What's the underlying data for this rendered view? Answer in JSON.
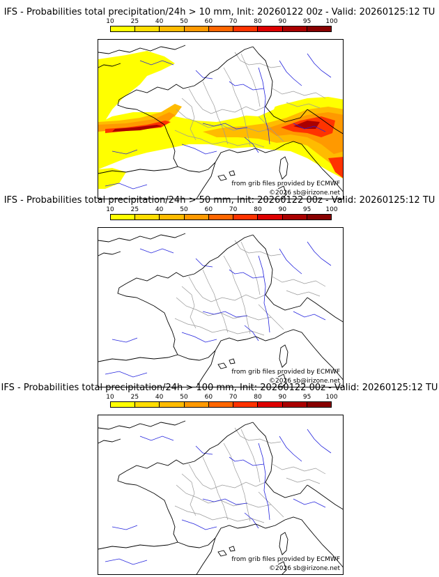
{
  "panels": [
    {
      "title": "IFS - Probabilities total precipitation/24h > 10 mm, Init: 20260122 00z - Valid: 20260125:12 TU",
      "precip_field": "high"
    },
    {
      "title": "IFS - Probabilities total precipitation/24h > 50 mm, Init: 20260122 00z - Valid: 20260125:12 TU",
      "precip_field": "none"
    },
    {
      "title": "IFS - Probabilities total precipitation/24h > 100 mm, Init: 20260122 00z - Valid: 20260125:12 TU",
      "precip_field": "none"
    }
  ],
  "colorbar": {
    "ticks": [
      "10",
      "25",
      "40",
      "50",
      "60",
      "70",
      "80",
      "90",
      "95",
      "100"
    ],
    "colors": [
      "#ffff00",
      "#ffdd00",
      "#ffbb00",
      "#ff9900",
      "#ff6600",
      "#ff3300",
      "#dd0000",
      "#aa0000",
      "#880000"
    ]
  },
  "credits": {
    "source": "from grib files provided by ECMWF",
    "copyright": "©2026 sb@irizone.net"
  },
  "map_colors": {
    "coast": "#000000",
    "rivers": "#2222dd",
    "borders": "#999999"
  }
}
